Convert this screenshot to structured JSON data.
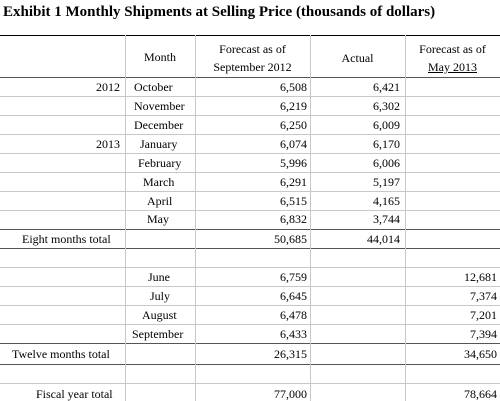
{
  "title": "Exhibit 1 Monthly Shipments at Selling Price (thousands of dollars)",
  "headers": {
    "month": "Month",
    "forecast_sep_line1": "Forecast as of",
    "forecast_sep_line2": "September 2012",
    "actual": "Actual",
    "forecast_may_line1": "Forecast as of",
    "forecast_may_line2": "May 2013"
  },
  "rows": [
    {
      "year": "2012",
      "month": "October",
      "forecast_sep": "6,508",
      "actual": "6,421",
      "forecast_may": ""
    },
    {
      "year": "",
      "month": "November",
      "forecast_sep": "6,219",
      "actual": "6,302",
      "forecast_may": ""
    },
    {
      "year": "",
      "month": "December",
      "forecast_sep": "6,250",
      "actual": "6,009",
      "forecast_may": ""
    },
    {
      "year": "2013",
      "month": "January",
      "forecast_sep": "6,074",
      "actual": "6,170",
      "forecast_may": ""
    },
    {
      "year": "",
      "month": "February",
      "forecast_sep": "5,996",
      "actual": "6,006",
      "forecast_may": ""
    },
    {
      "year": "",
      "month": "March",
      "forecast_sep": "6,291",
      "actual": "5,197",
      "forecast_may": ""
    },
    {
      "year": "",
      "month": "April",
      "forecast_sep": "6,515",
      "actual": "4,165",
      "forecast_may": ""
    },
    {
      "year": "",
      "month": "May",
      "forecast_sep": "6,832",
      "actual": "3,744",
      "forecast_may": ""
    }
  ],
  "eight_months": {
    "label": "Eight months total",
    "forecast_sep": "50,685",
    "actual": "44,014"
  },
  "rows2": [
    {
      "month": "June",
      "forecast_sep": "6,759",
      "forecast_may": "12,681"
    },
    {
      "month": "July",
      "forecast_sep": "6,645",
      "forecast_may": "7,374"
    },
    {
      "month": "August",
      "forecast_sep": "6,478",
      "forecast_may": "7,201"
    },
    {
      "month": "September",
      "forecast_sep": "6,433",
      "forecast_may": "7,394"
    }
  ],
  "twelve_months": {
    "label": "Twelve months total",
    "forecast_sep": "26,315",
    "forecast_may": "34,650"
  },
  "fiscal_year": {
    "label": "Fiscal year total",
    "forecast_sep": "77,000",
    "forecast_may": "78,664"
  }
}
